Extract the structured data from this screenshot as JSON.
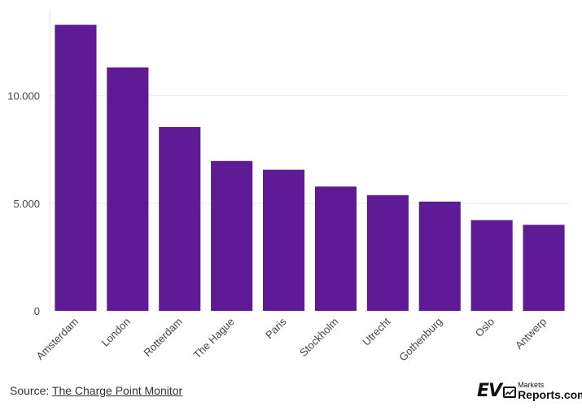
{
  "chart_data": {
    "type": "bar",
    "categories": [
      "Amsterdam",
      "London",
      "Rotterdam",
      "The Hague",
      "Paris",
      "Stockholm",
      "Utrecht",
      "Gothenburg",
      "Oslo",
      "Antwerp"
    ],
    "values": [
      13300,
      11320,
      8550,
      6970,
      6560,
      5780,
      5380,
      5080,
      4220,
      4000
    ],
    "ylim": [
      0,
      14000
    ],
    "yticks": [
      0,
      5000,
      10000
    ],
    "ytick_labels": [
      "0",
      "5.000",
      "10.000"
    ],
    "bar_color": "#5f1b96",
    "grid": true,
    "legend": "none"
  },
  "footer": {
    "source_prefix": "Source: ",
    "source_link": "The Charge Point Monitor"
  },
  "logo": {
    "ev": "EV",
    "markets": "Markets",
    "reports": "Reports.com"
  }
}
